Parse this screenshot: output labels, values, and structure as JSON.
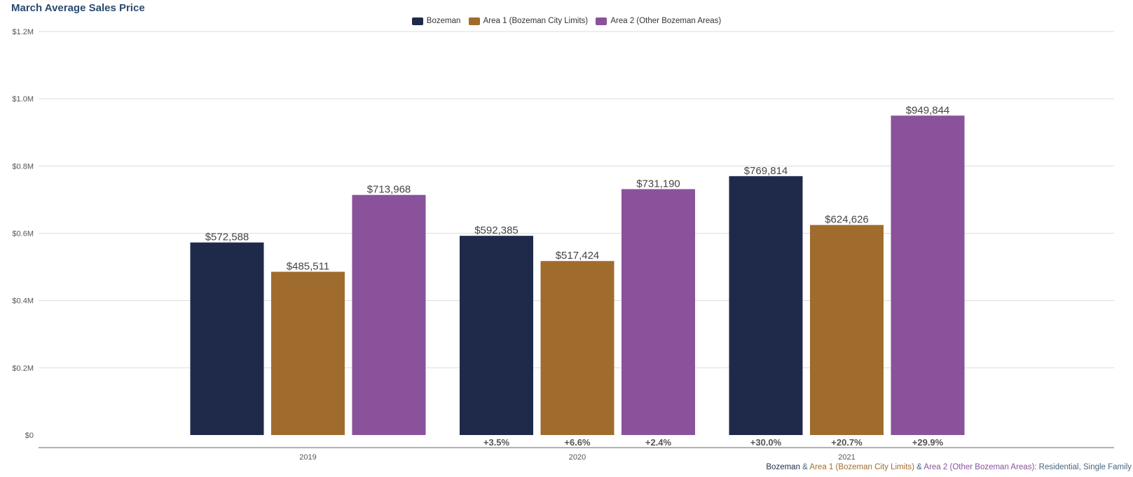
{
  "chart_data": {
    "type": "bar",
    "title": "March Average Sales Price",
    "categories": [
      "2019",
      "2020",
      "2021"
    ],
    "series": [
      {
        "name": "Bozeman",
        "color": "#1f2a4b",
        "values": [
          572588,
          592385,
          769814
        ],
        "value_labels": [
          "$572,588",
          "$592,385",
          "$769,814"
        ],
        "change_labels": [
          "",
          "+3.5%",
          "+30.0%"
        ]
      },
      {
        "name": "Area 1 (Bozeman City Limits)",
        "color": "#a06c2e",
        "values": [
          485511,
          517424,
          624626
        ],
        "value_labels": [
          "$485,511",
          "$517,424",
          "$624,626"
        ],
        "change_labels": [
          "",
          "+6.6%",
          "+20.7%"
        ]
      },
      {
        "name": "Area 2 (Other Bozeman Areas)",
        "color": "#8a529b",
        "values": [
          713968,
          731190,
          949844
        ],
        "value_labels": [
          "$713,968",
          "$731,190",
          "$949,844"
        ],
        "change_labels": [
          "",
          "+2.4%",
          "+29.9%"
        ]
      }
    ],
    "ylim": [
      0,
      1200000
    ],
    "yticks": [
      0,
      200000,
      400000,
      600000,
      800000,
      1000000,
      1200000
    ],
    "ytick_labels": [
      "$0",
      "$0.2M",
      "$0.4M",
      "$0.6M",
      "$0.8M",
      "$1.0M",
      "$1.2M"
    ],
    "xlabel": "",
    "ylabel": "",
    "grid": true,
    "legend_position": "top-center"
  },
  "footnote": {
    "bozeman": "Bozeman",
    "amp1": " & ",
    "area1": "Area 1 (Bozeman City Limits)",
    "amp2": " & ",
    "area2": "Area 2 (Other Bozeman Areas)",
    "suffix": ": Residential, Single Family"
  }
}
